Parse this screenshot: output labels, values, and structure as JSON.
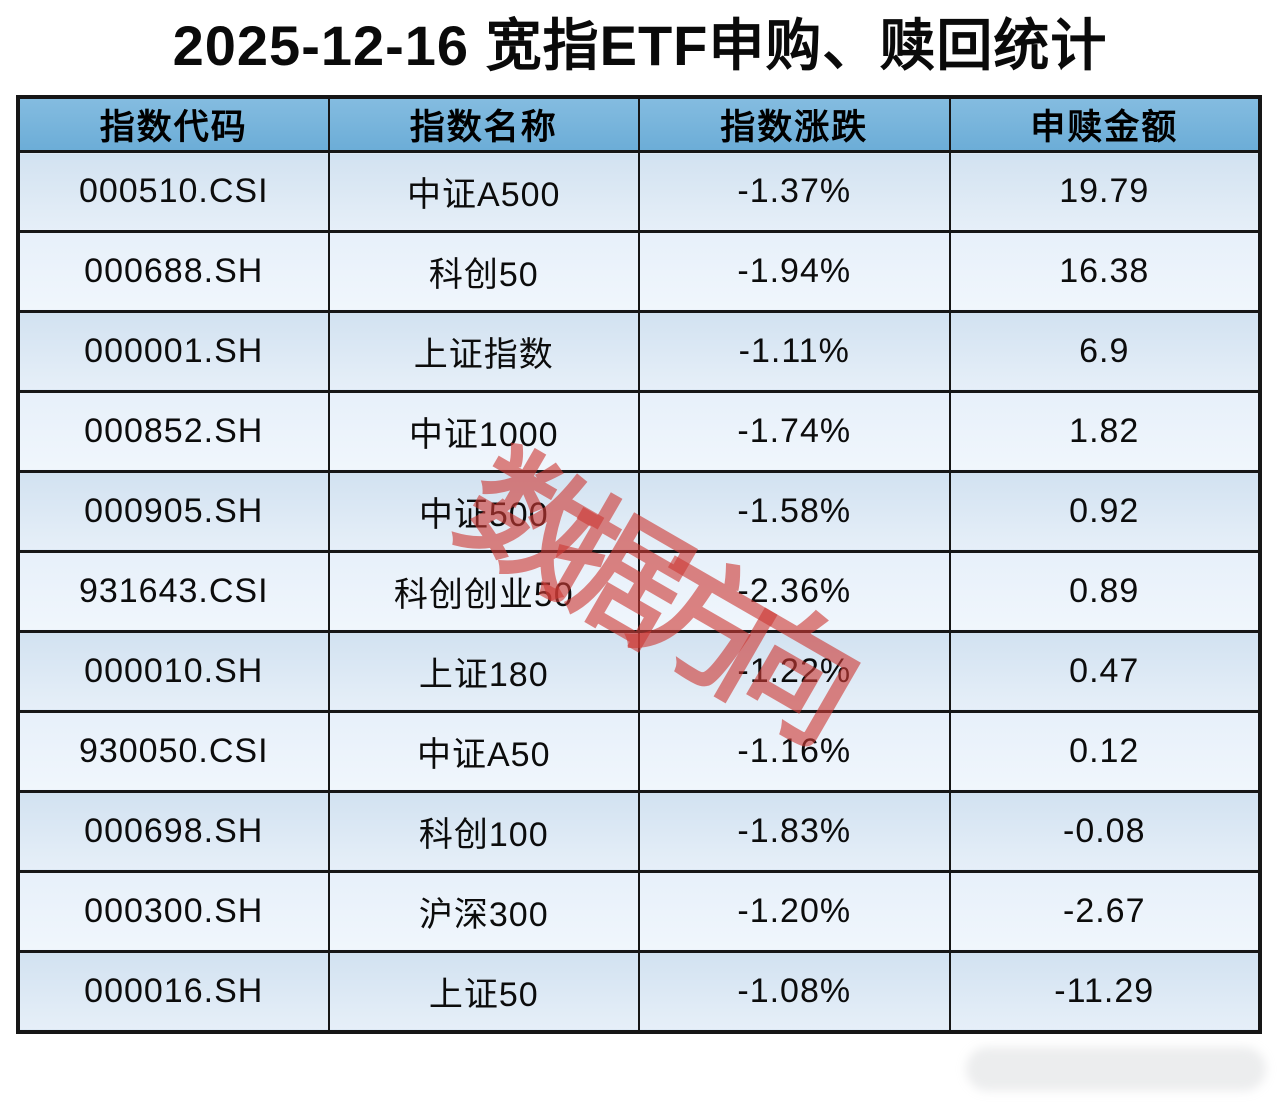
{
  "chart_data": {
    "type": "table",
    "title": "2025-12-16 宽指ETF申购、赎回统计",
    "columns": [
      "指数代码",
      "指数名称",
      "指数涨跌",
      "申赎金额"
    ],
    "rows": [
      [
        "000510.CSI",
        "中证A500",
        "-1.37%",
        "19.79"
      ],
      [
        "000688.SH",
        "科创50",
        "-1.94%",
        "16.38"
      ],
      [
        "000001.SH",
        "上证指数",
        "-1.11%",
        "6.9"
      ],
      [
        "000852.SH",
        "中证1000",
        "-1.74%",
        "1.82"
      ],
      [
        "000905.SH",
        "中证500",
        "-1.58%",
        "0.92"
      ],
      [
        "931643.CSI",
        "科创创业50",
        "-2.36%",
        "0.89"
      ],
      [
        "000010.SH",
        "上证180",
        "-1.22%",
        "0.47"
      ],
      [
        "930050.CSI",
        "中证A50",
        "-1.16%",
        "0.12"
      ],
      [
        "000698.SH",
        "科创100",
        "-1.83%",
        "-0.08"
      ],
      [
        "000300.SH",
        "沪深300",
        "-1.20%",
        "-2.67"
      ],
      [
        "000016.SH",
        "上证50",
        "-1.08%",
        "-11.29"
      ]
    ]
  },
  "watermark": {
    "text": "数据方向"
  },
  "colors": {
    "header_bg_top": "#84bce0",
    "header_bg_bottom": "#6cadd7",
    "row_odd_top": "#d2e2f1",
    "row_odd_bottom": "#e6eff8",
    "row_even_top": "#e7f0fa",
    "row_even_bottom": "#f0f6fc",
    "border_color": "#161616",
    "watermark_color": "rgba(205, 58, 53, 0.62)"
  }
}
